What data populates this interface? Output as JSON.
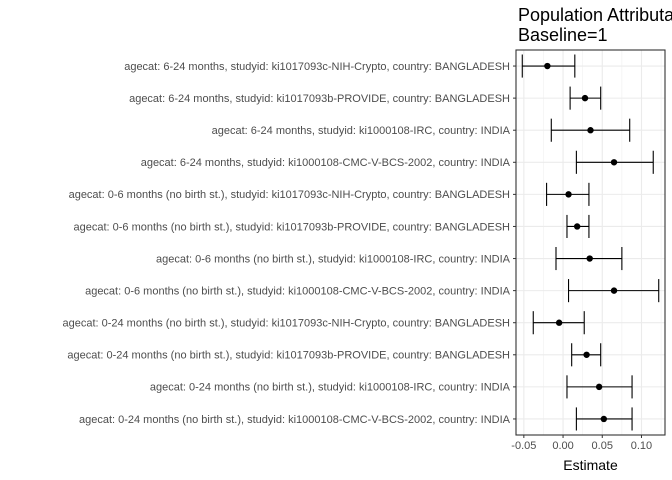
{
  "chart_data": {
    "type": "forest",
    "title": "Population Attributable",
    "subtitle": "Baseline=1",
    "xlabel": "Estimate",
    "ylabel": "",
    "xlim": [
      -0.06,
      0.13
    ],
    "x_ticks": [
      -0.05,
      0.0,
      0.05,
      0.1
    ],
    "x_tick_labels": [
      "-0.05",
      "0.00",
      "0.05",
      "0.10"
    ],
    "grid": true,
    "categories": [
      "agecat: 6-24 months, studyid: ki1017093c-NIH-Crypto, country: BANGLADESH",
      "agecat: 6-24 months, studyid: ki1017093b-PROVIDE, country: BANGLADESH",
      "agecat: 6-24 months, studyid: ki1000108-IRC, country: INDIA",
      "agecat: 6-24 months, studyid: ki1000108-CMC-V-BCS-2002, country: INDIA",
      "agecat: 0-6 months (no birth st.), studyid: ki1017093c-NIH-Crypto, country: BANGLADESH",
      "agecat: 0-6 months (no birth st.), studyid: ki1017093b-PROVIDE, country: BANGLADESH",
      "agecat: 0-6 months (no birth st.), studyid: ki1000108-IRC, country: INDIA",
      "agecat: 0-6 months (no birth st.), studyid: ki1000108-CMC-V-BCS-2002, country: INDIA",
      "agecat: 0-24 months (no birth st.), studyid: ki1017093c-NIH-Crypto, country: BANGLADESH",
      "agecat: 0-24 months (no birth st.), studyid: ki1017093b-PROVIDE, country: BANGLADESH",
      "agecat: 0-24 months (no birth st.), studyid: ki1000108-IRC, country: INDIA",
      "agecat: 0-24 months (no birth st.), studyid: ki1000108-CMC-V-BCS-2002, country: INDIA"
    ],
    "estimates": [
      -0.02,
      0.028,
      0.035,
      0.065,
      0.007,
      0.018,
      0.034,
      0.065,
      -0.005,
      0.03,
      0.046,
      0.052
    ],
    "lower": [
      -0.052,
      0.009,
      -0.015,
      0.017,
      -0.021,
      0.005,
      -0.009,
      0.007,
      -0.038,
      0.011,
      0.005,
      0.017
    ],
    "upper": [
      0.015,
      0.048,
      0.085,
      0.115,
      0.033,
      0.033,
      0.075,
      0.122,
      0.027,
      0.048,
      0.088,
      0.088
    ]
  }
}
